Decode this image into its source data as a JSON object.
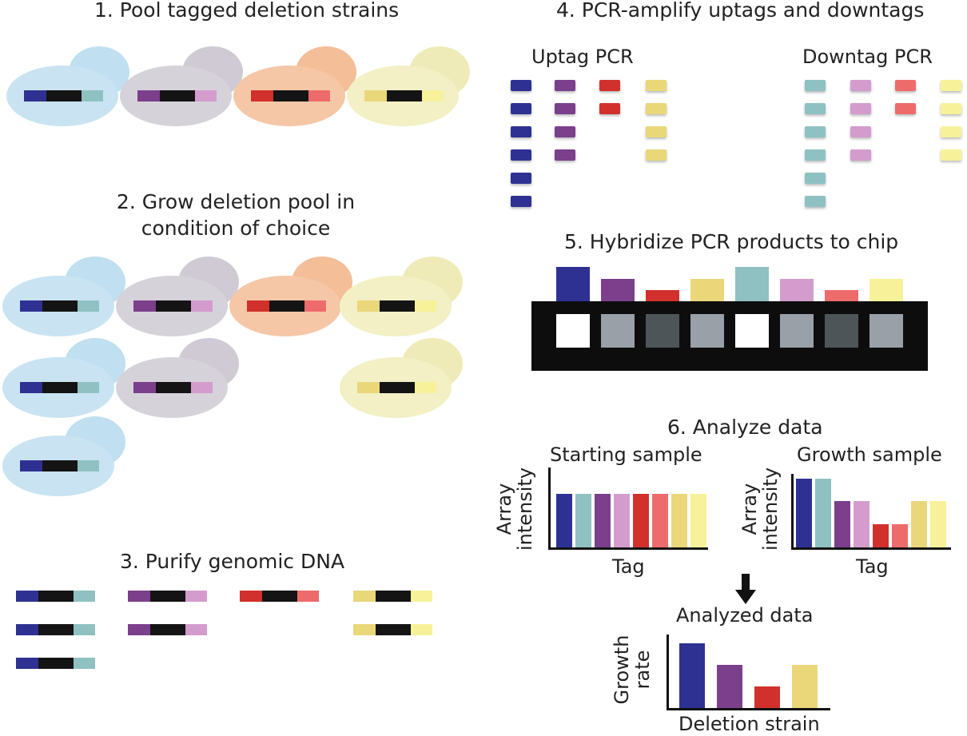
{
  "colors": {
    "blue": "#2e3192",
    "purple": "#7b3f8c",
    "red": "#d1302c",
    "yellow": "#e9d77a",
    "teal": "#8fc1c2",
    "pink": "#d49ccd",
    "salmon": "#ee6b6b",
    "lightyellow": "#f7f29a",
    "black": "#141414"
  },
  "steps": {
    "s1": "1. Pool tagged deletion strains",
    "s2_line1": "2. Grow deletion pool in",
    "s2_line2": "condition of choice",
    "s3": "3. Purify genomic DNA",
    "s4": "4. PCR-amplify uptags and downtags",
    "s4_uptag": "Uptag PCR",
    "s4_downtag": "Downtag PCR",
    "s5": "5. Hybridize PCR products to chip",
    "s6": "6. Analyze data"
  },
  "analysis": {
    "starting_title": "Starting sample",
    "growth_title": "Growth sample",
    "y_line1": "Array",
    "y_line2": "intensity",
    "x_label": "Tag",
    "analyzed_title": "Analyzed data",
    "growth_y_line1": "Growth",
    "growth_y_line2": "rate",
    "deletion_x": "Deletion strain"
  },
  "chart_data": [
    {
      "type": "bar",
      "title": "Starting sample",
      "xlabel": "Tag",
      "ylabel": "Array intensity",
      "categories": [
        "blue uptag",
        "teal downtag",
        "purple uptag",
        "pink downtag",
        "red uptag",
        "salmon downtag",
        "yellow uptag",
        "light yellow downtag"
      ],
      "values": [
        1,
        1,
        1,
        1,
        1,
        1,
        1,
        1
      ],
      "ylim": [
        0,
        1.5
      ]
    },
    {
      "type": "bar",
      "title": "Growth sample",
      "xlabel": "Tag",
      "ylabel": "Array intensity",
      "categories": [
        "blue uptag",
        "teal downtag",
        "purple uptag",
        "pink downtag",
        "red uptag",
        "salmon downtag",
        "yellow uptag",
        "light yellow downtag"
      ],
      "values": [
        1.5,
        1.5,
        1.0,
        1.0,
        0.5,
        0.5,
        1.0,
        1.0
      ],
      "ylim": [
        0,
        1.6
      ]
    },
    {
      "type": "bar",
      "title": "Analyzed data",
      "xlabel": "Deletion strain",
      "ylabel": "Growth rate",
      "categories": [
        "blue strain",
        "purple strain",
        "red strain",
        "yellow strain"
      ],
      "values": [
        1.5,
        1.0,
        0.5,
        1.0
      ],
      "ylim": [
        0,
        1.7
      ]
    }
  ]
}
